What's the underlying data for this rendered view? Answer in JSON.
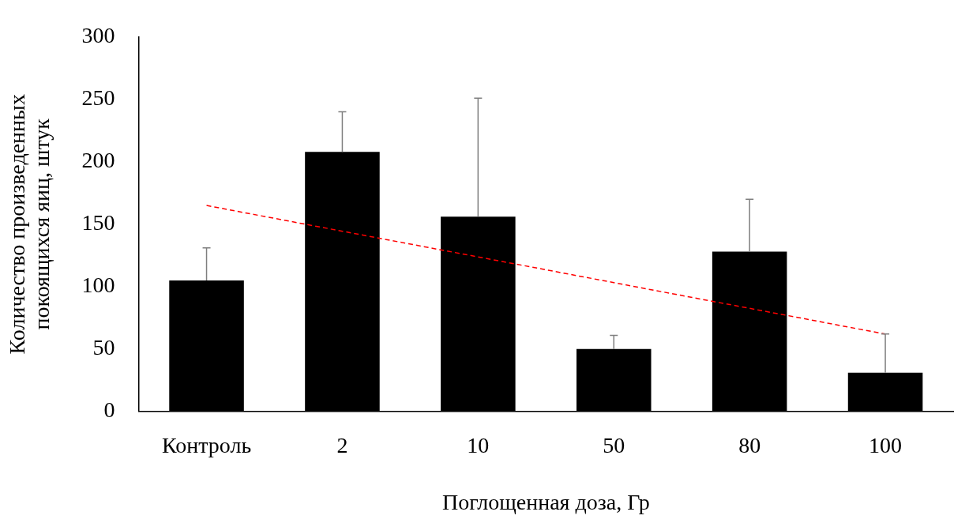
{
  "chart_data": {
    "type": "bar",
    "xlabel": "Поглощенная доза, Гр",
    "ylabel": "Количество произведенных покоящихся яиц, штук",
    "categories": [
      "Контроль",
      "2",
      "10",
      "50",
      "80",
      "100"
    ],
    "series": [
      {
        "color": "#000000",
        "values": [
          105,
          208,
          156,
          50,
          128,
          31
        ],
        "errors": [
          [
            105,
            131
          ],
          [
            208,
            240
          ],
          [
            156,
            251
          ],
          [
            50,
            61
          ],
          [
            128,
            170
          ],
          [
            31,
            62
          ]
        ]
      },
      {
        "type": "line",
        "color": "#ff0000",
        "line_style": "dashed",
        "marker": "none",
        "values": [
          165,
          144.4,
          123.8,
          103.2,
          82.6,
          62
        ]
      }
    ],
    "ylim": [
      0,
      300
    ],
    "yticks": [
      0,
      50,
      100,
      150,
      200,
      250,
      300
    ],
    "grid": false,
    "legend": false
  }
}
